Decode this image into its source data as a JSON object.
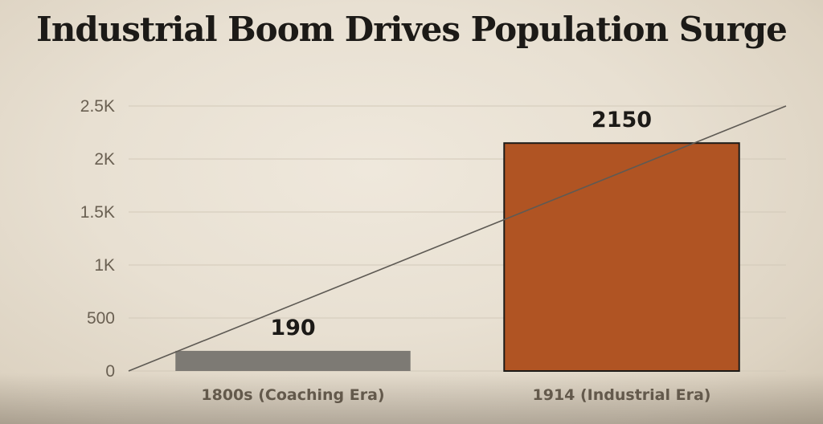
{
  "chart_data": {
    "type": "bar",
    "title": "Industrial Boom Drives Population Surge",
    "categories": [
      "1800s (Coaching Era)",
      "1914 (Industrial Era)"
    ],
    "values": [
      190,
      2150
    ],
    "data_labels": [
      "190",
      "2150"
    ],
    "ylim": [
      0,
      2500
    ],
    "yticks": [
      0,
      500,
      1000,
      1500,
      2000,
      2500
    ],
    "ytick_labels": [
      "0",
      "500",
      "1K",
      "1.5K",
      "2K",
      "2.5K"
    ],
    "grid": true,
    "legend": "none",
    "trend_line": true,
    "colors": {
      "bar_1": "#7d7a74",
      "bar_2": "#b05423",
      "bar_2_border": "#1c1a17",
      "grid": "#d2c9b9",
      "trend_line": "#5e5a54",
      "text": "#1c1a17",
      "axis_text": "#6a6052"
    }
  }
}
